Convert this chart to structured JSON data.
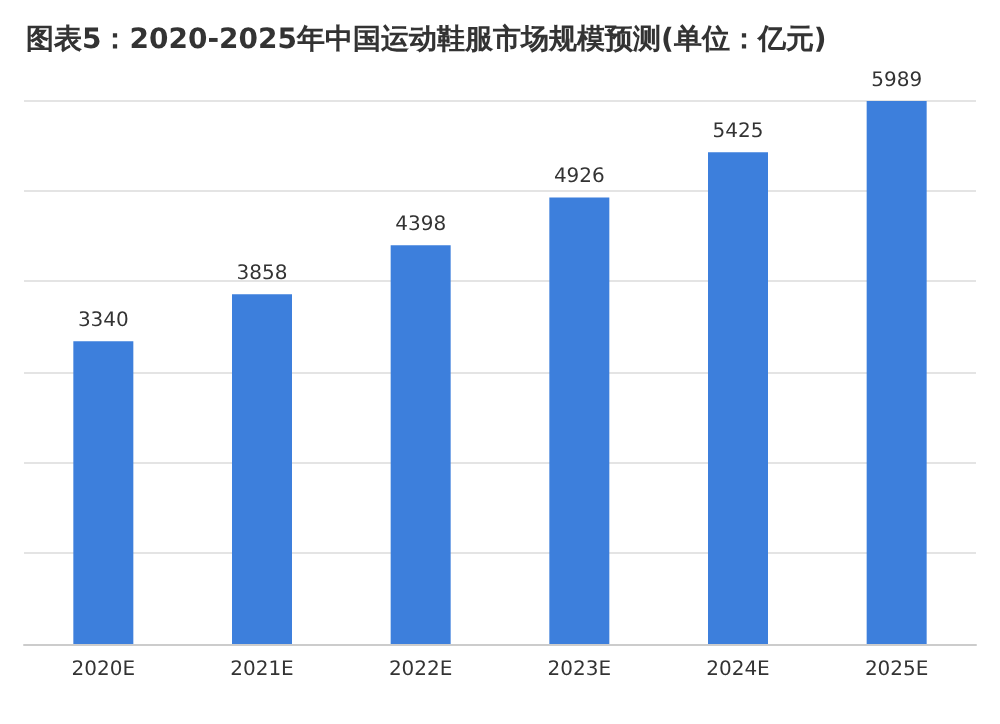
{
  "chart_data": {
    "type": "bar",
    "title": "图表5：2020-2025年中国运动鞋服市场规模预测(单位：亿元)",
    "categories": [
      "2020E",
      "2021E",
      "2022E",
      "2023E",
      "2024E",
      "2025E"
    ],
    "values": [
      3340,
      3858,
      4398,
      4926,
      5425,
      5989
    ],
    "color": "#3d7fdc",
    "data_labels": true,
    "grid": "y",
    "tick_labels": "x"
  }
}
